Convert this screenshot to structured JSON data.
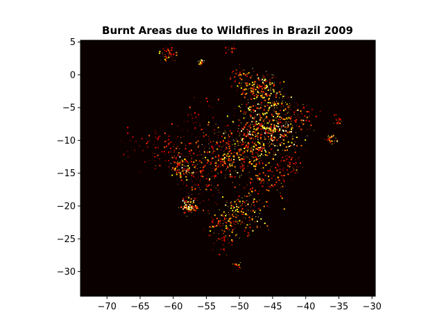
{
  "chart_data": {
    "type": "heatmap",
    "title": "Burnt Areas due to Wildfires in Brazil 2009",
    "xlabel": "",
    "ylabel": "",
    "xlim": [
      -74,
      -29.5
    ],
    "ylim": [
      -33.75,
      5.27
    ],
    "xticks": [
      -70,
      -65,
      -60,
      -55,
      -50,
      -45,
      -40,
      -35,
      -30
    ],
    "yticks": [
      5,
      0,
      -5,
      -10,
      -15,
      -20,
      -25,
      -30
    ],
    "xtick_labels": [
      "−70",
      "−65",
      "−60",
      "−55",
      "−50",
      "−45",
      "−40",
      "−35",
      "−30"
    ],
    "ytick_labels": [
      "5",
      "0",
      "−5",
      "−10",
      "−15",
      "−20",
      "−25",
      "−30"
    ],
    "colormap": "hot",
    "background_color": "#0a0000",
    "grid": false,
    "clusters": [
      {
        "lon": -60.8,
        "lat": 3.4,
        "spread": 0.6,
        "n": 40,
        "intensity": 0.8
      },
      {
        "lon": -55.8,
        "lat": 1.9,
        "spread": 0.3,
        "n": 20,
        "intensity": 1.0
      },
      {
        "lon": -51.3,
        "lat": 3.8,
        "spread": 0.4,
        "n": 15,
        "intensity": 0.6
      },
      {
        "lon": -50.2,
        "lat": 0.2,
        "spread": 0.8,
        "n": 25,
        "intensity": 0.6
      },
      {
        "lon": -48.6,
        "lat": -1.6,
        "spread": 1.0,
        "n": 60,
        "intensity": 0.8
      },
      {
        "lon": -46.5,
        "lat": -2.2,
        "spread": 1.2,
        "n": 120,
        "intensity": 1.0
      },
      {
        "lon": -45.0,
        "lat": -5.0,
        "spread": 1.8,
        "n": 140,
        "intensity": 0.9
      },
      {
        "lon": -47.5,
        "lat": -8.0,
        "spread": 2.0,
        "n": 200,
        "intensity": 1.0
      },
      {
        "lon": -44.0,
        "lat": -8.5,
        "spread": 1.6,
        "n": 140,
        "intensity": 1.0
      },
      {
        "lon": -48.0,
        "lat": -11.0,
        "spread": 2.0,
        "n": 180,
        "intensity": 0.9
      },
      {
        "lon": -51.5,
        "lat": -12.5,
        "spread": 1.8,
        "n": 150,
        "intensity": 0.9
      },
      {
        "lon": -55.0,
        "lat": -12.0,
        "spread": 2.0,
        "n": 130,
        "intensity": 0.7
      },
      {
        "lon": -58.8,
        "lat": -14.3,
        "spread": 0.8,
        "n": 80,
        "intensity": 1.0
      },
      {
        "lon": -60.5,
        "lat": -12.0,
        "spread": 1.5,
        "n": 60,
        "intensity": 0.6
      },
      {
        "lon": -57.8,
        "lat": -20.0,
        "spread": 0.6,
        "n": 90,
        "intensity": 1.0
      },
      {
        "lon": -56.0,
        "lat": -17.0,
        "spread": 1.5,
        "n": 70,
        "intensity": 0.6
      },
      {
        "lon": -49.5,
        "lat": -21.0,
        "spread": 1.6,
        "n": 160,
        "intensity": 0.9
      },
      {
        "lon": -53.0,
        "lat": -22.5,
        "spread": 1.4,
        "n": 90,
        "intensity": 0.8
      },
      {
        "lon": -46.0,
        "lat": -16.0,
        "spread": 1.8,
        "n": 100,
        "intensity": 0.7
      },
      {
        "lon": -42.5,
        "lat": -13.5,
        "spread": 1.2,
        "n": 60,
        "intensity": 0.6
      },
      {
        "lon": -36.2,
        "lat": -9.8,
        "spread": 0.4,
        "n": 30,
        "intensity": 0.9
      },
      {
        "lon": -35.2,
        "lat": -7.0,
        "spread": 0.4,
        "n": 20,
        "intensity": 0.6
      },
      {
        "lon": -50.5,
        "lat": -28.9,
        "spread": 0.3,
        "n": 15,
        "intensity": 0.8
      },
      {
        "lon": -52.5,
        "lat": -26.0,
        "spread": 1.0,
        "n": 20,
        "intensity": 0.5
      },
      {
        "lon": -55.5,
        "lat": -7.0,
        "spread": 1.5,
        "n": 40,
        "intensity": 0.5
      },
      {
        "lon": -62.5,
        "lat": -9.5,
        "spread": 1.2,
        "n": 30,
        "intensity": 0.5
      },
      {
        "lon": -66.0,
        "lat": -10.5,
        "spread": 1.5,
        "n": 25,
        "intensity": 0.4
      },
      {
        "lon": -41.0,
        "lat": -6.0,
        "spread": 1.2,
        "n": 50,
        "intensity": 0.6
      }
    ]
  }
}
